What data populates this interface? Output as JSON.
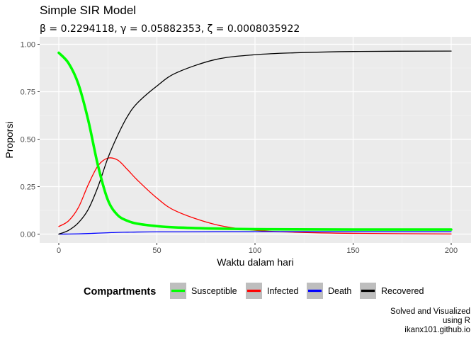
{
  "title": "Simple SIR Model",
  "subtitle": "β = 0.2294118,  γ = 0.05882353,  ζ = 0.0008035922",
  "caption": [
    "Solved and Visualized",
    "using R",
    "ikanx101.github.io"
  ],
  "legend_title": "Compartments",
  "chart_data": {
    "type": "line",
    "title": "Simple SIR Model",
    "xlabel": "Waktu dalam hari",
    "ylabel": "Proporsi",
    "xlim": [
      0,
      200
    ],
    "ylim": [
      0,
      1
    ],
    "x_ticks": [
      0,
      50,
      100,
      150,
      200
    ],
    "y_ticks": [
      0.0,
      0.25,
      0.5,
      0.75,
      1.0
    ],
    "x_tick_labels": [
      "0",
      "50",
      "100",
      "150",
      "200"
    ],
    "y_tick_labels": [
      "0.00",
      "0.25",
      "0.50",
      "0.75",
      "1.00"
    ],
    "grid": true,
    "legend_position": "bottom",
    "x": [
      0,
      5,
      10,
      15,
      20,
      25,
      30,
      35,
      40,
      50,
      60,
      80,
      100,
      120,
      150,
      200
    ],
    "series": [
      {
        "name": "Susceptible",
        "color": "#00ff00",
        "values": [
          0.955,
          0.9,
          0.79,
          0.6,
          0.36,
          0.18,
          0.1,
          0.07,
          0.055,
          0.042,
          0.035,
          0.029,
          0.026,
          0.025,
          0.024,
          0.024
        ]
      },
      {
        "name": "Infected",
        "color": "#ff0000",
        "values": [
          0.04,
          0.07,
          0.14,
          0.26,
          0.36,
          0.4,
          0.39,
          0.34,
          0.285,
          0.19,
          0.12,
          0.05,
          0.02,
          0.01,
          0.004,
          0.001
        ]
      },
      {
        "name": "Death",
        "color": "#0000ff",
        "values": [
          0.0,
          0.0005,
          0.0015,
          0.003,
          0.005,
          0.007,
          0.009,
          0.01,
          0.011,
          0.012,
          0.012,
          0.013,
          0.013,
          0.013,
          0.013,
          0.013
        ]
      },
      {
        "name": "Recovered",
        "color": "#000000",
        "values": [
          0.0,
          0.02,
          0.06,
          0.13,
          0.25,
          0.4,
          0.52,
          0.62,
          0.69,
          0.78,
          0.85,
          0.92,
          0.945,
          0.955,
          0.962,
          0.964
        ]
      }
    ]
  }
}
